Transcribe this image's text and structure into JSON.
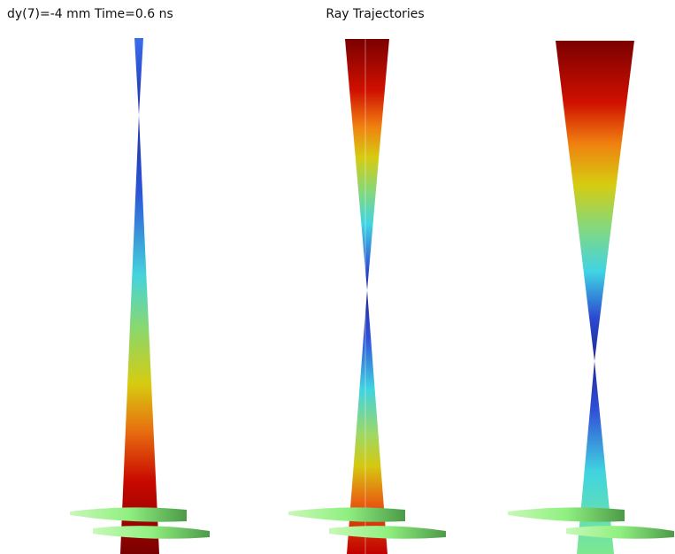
{
  "header": {
    "subtitle": "dy(7)=-4 mm Time=0.6 ns",
    "title": "Ray Trajectories"
  }
}
